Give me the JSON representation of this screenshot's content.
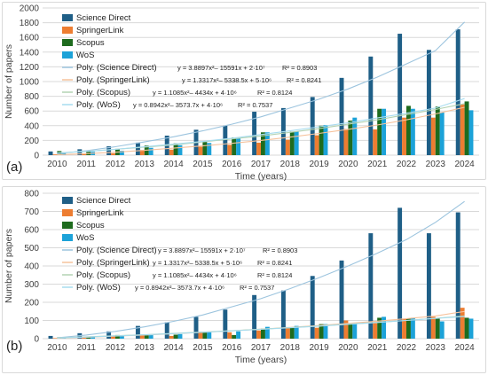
{
  "chart_data": [
    {
      "panel_label": "(a)",
      "type": "bar",
      "categories": [
        "2010",
        "2011",
        "2012",
        "2013",
        "2014",
        "2015",
        "2016",
        "2017",
        "2018",
        "2019",
        "2020",
        "2021",
        "2022",
        "2023",
        "2024"
      ],
      "xlabel": "Time (years)",
      "ylabel": "Number of papers",
      "ylim": [
        0,
        2000
      ],
      "yticks": [
        0,
        200,
        400,
        600,
        800,
        1000,
        1200,
        1400,
        1600,
        1800,
        2000
      ],
      "grid": true,
      "legend_position": "top-left",
      "series": [
        {
          "name": "Science Direct",
          "color": "#1f5f87",
          "values": [
            50,
            80,
            120,
            170,
            265,
            345,
            400,
            590,
            640,
            790,
            1050,
            1340,
            1650,
            1430,
            1710
          ]
        },
        {
          "name": "SpringerLink",
          "color": "#ed7d31",
          "values": [
            10,
            15,
            25,
            70,
            75,
            115,
            140,
            170,
            210,
            270,
            355,
            350,
            510,
            510,
            690
          ]
        },
        {
          "name": "Scopus",
          "color": "#1e6b1e",
          "values": [
            55,
            60,
            85,
            130,
            160,
            180,
            240,
            310,
            320,
            400,
            470,
            630,
            670,
            660,
            730
          ]
        },
        {
          "name": "WoS",
          "color": "#1ca2d8",
          "values": [
            40,
            45,
            60,
            100,
            135,
            165,
            230,
            310,
            325,
            410,
            510,
            630,
            630,
            580,
            610
          ]
        }
      ],
      "trendlines": [
        {
          "name": "Poly. (Science Direct)",
          "color": "#9cc4de",
          "equation": "y = 3.8897x²– 15591x + 2·10⁷",
          "r2": "R² = 0.8903",
          "values": [
            20,
            60,
            115,
            180,
            250,
            330,
            420,
            520,
            640,
            760,
            900,
            1060,
            1240,
            1420,
            1810
          ]
        },
        {
          "name": "Poly. (SpringerLink)",
          "color": "#f6c29c",
          "equation": "y = 1.3317x²– 5338.5x + 5·10⁶",
          "r2": "R² = 0.8241",
          "values": [
            5,
            20,
            40,
            65,
            95,
            125,
            160,
            200,
            245,
            295,
            350,
            410,
            480,
            560,
            650
          ]
        },
        {
          "name": "Poly. (Scopus)",
          "color": "#b3d3b3",
          "equation": "y = 1.1085x²– 4434x + 4·10⁶",
          "r2": "R² = 0.8124",
          "values": [
            30,
            50,
            80,
            110,
            140,
            180,
            220,
            260,
            310,
            360,
            420,
            480,
            550,
            620,
            700
          ]
        },
        {
          "name": "Poly. (WoS)",
          "color": "#a7dcef",
          "equation": "y = 0.8942x²– 3573.7x + 4·10⁶",
          "r2": "R² = 0.7537",
          "values": [
            30,
            50,
            80,
            115,
            150,
            185,
            230,
            280,
            330,
            385,
            440,
            505,
            570,
            640,
            770
          ]
        }
      ]
    },
    {
      "panel_label": "(b)",
      "type": "bar",
      "categories": [
        "2010",
        "2011",
        "2012",
        "2013",
        "2014",
        "2015",
        "2016",
        "2017",
        "2018",
        "2019",
        "2020",
        "2021",
        "2022",
        "2023",
        "2024"
      ],
      "xlabel": "Time (years)",
      "ylabel": "Number of papers",
      "ylim": [
        0,
        800
      ],
      "yticks": [
        0,
        100,
        200,
        300,
        400,
        500,
        600,
        700,
        800
      ],
      "grid": true,
      "legend_position": "top-left",
      "series": [
        {
          "name": "Science Direct",
          "color": "#1f5f87",
          "values": [
            15,
            30,
            40,
            70,
            90,
            120,
            160,
            240,
            265,
            345,
            430,
            580,
            720,
            580,
            695
          ]
        },
        {
          "name": "SpringerLink",
          "color": "#ed7d31",
          "values": [
            3,
            10,
            15,
            20,
            15,
            38,
            35,
            45,
            60,
            60,
            100,
            85,
            110,
            120,
            170
          ]
        },
        {
          "name": "Scopus",
          "color": "#1e6b1e",
          "values": [
            8,
            10,
            20,
            20,
            22,
            35,
            20,
            55,
            60,
            80,
            80,
            115,
            110,
            110,
            115
          ]
        },
        {
          "name": "WoS",
          "color": "#1ca2d8",
          "values": [
            5,
            8,
            15,
            20,
            25,
            35,
            40,
            65,
            70,
            80,
            85,
            120,
            115,
            95,
            110
          ]
        }
      ],
      "trendlines": [
        {
          "name": "Poly. (Science Direct)",
          "color": "#9cc4de",
          "equation": "y = 3.8897x²– 15591x + 2·10⁷",
          "r2": "R² = 0.8903",
          "values": [
            5,
            20,
            40,
            65,
            95,
            130,
            175,
            220,
            275,
            335,
            400,
            470,
            545,
            640,
            755
          ]
        },
        {
          "name": "Poly. (SpringerLink)",
          "color": "#f6c29c",
          "equation": "y = 1.3317x²– 5338.5x + 5·10⁶",
          "r2": "R² = 0.8241",
          "values": [
            3,
            8,
            14,
            20,
            27,
            35,
            43,
            52,
            62,
            72,
            84,
            96,
            110,
            125,
            150
          ]
        },
        {
          "name": "Poly. (Scopus)",
          "color": "#b3d3b3",
          "equation": "y = 1.1085x²– 4434x + 4·10⁶",
          "r2": "R² = 0.8124",
          "values": [
            5,
            10,
            16,
            22,
            29,
            36,
            44,
            52,
            61,
            70,
            80,
            90,
            100,
            112,
            125
          ]
        },
        {
          "name": "Poly. (WoS)",
          "color": "#a7dcef",
          "equation": "y = 0.8942x²– 3573.7x + 4·10⁶",
          "r2": "R² = 0.7537",
          "values": [
            4,
            9,
            15,
            21,
            28,
            35,
            43,
            51,
            60,
            69,
            79,
            89,
            100,
            111,
            122
          ]
        }
      ]
    }
  ]
}
